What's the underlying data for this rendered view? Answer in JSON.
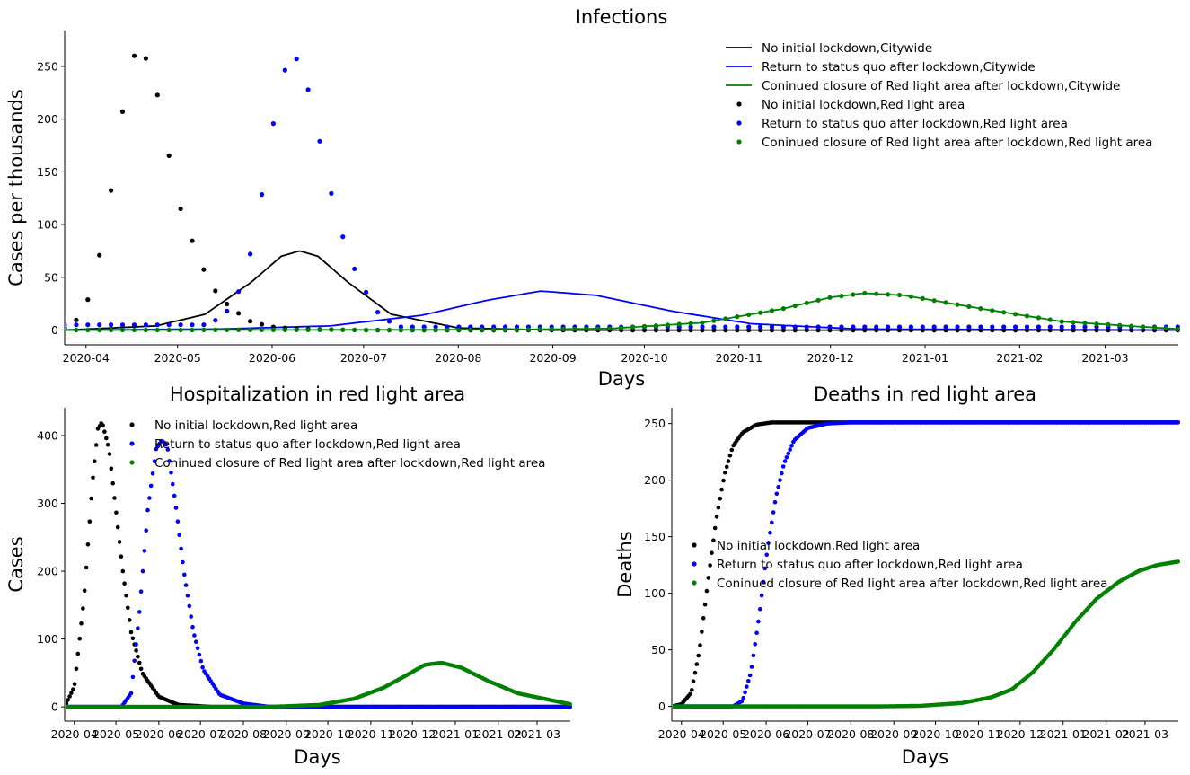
{
  "colors": {
    "black": "#000000",
    "blue": "#0000ff",
    "green": "#008000"
  },
  "chart_data": [
    {
      "type": "line",
      "title": "Infections",
      "xlabel": "Days",
      "ylabel": "Cases per thousands",
      "x_start": "2020-03-25",
      "x_end": "2021-03-25",
      "xlim": [
        "2020-03-25",
        "2021-03-25"
      ],
      "ylim": [
        -14,
        284
      ],
      "xticks": [
        "2020-04",
        "2020-05",
        "2020-06",
        "2020-07",
        "2020-08",
        "2020-09",
        "2020-10",
        "2020-11",
        "2020-12",
        "2021-01",
        "2021-02",
        "2021-03"
      ],
      "yticks": [
        0,
        50,
        100,
        150,
        200,
        250
      ],
      "grid": false,
      "legend_position": "top-right",
      "series": [
        {
          "name": "No initial lockdown,Citywide",
          "style": "line",
          "color": "black",
          "x": [
            "2020-03-25",
            "2020-04-24",
            "2020-05-10",
            "2020-05-25",
            "2020-06-04",
            "2020-06-10",
            "2020-06-16",
            "2020-06-26",
            "2020-07-10",
            "2020-08-01",
            "2020-09-01",
            "2021-03-25"
          ],
          "values": [
            0,
            4,
            15,
            45,
            70,
            75,
            70,
            45,
            15,
            2,
            0,
            0
          ]
        },
        {
          "name": "Return to status quo after lockdown,Citywide",
          "style": "line",
          "color": "blue",
          "x": [
            "2020-03-25",
            "2020-05-15",
            "2020-06-20",
            "2020-07-20",
            "2020-08-10",
            "2020-08-28",
            "2020-09-15",
            "2020-10-10",
            "2020-11-05",
            "2020-12-10",
            "2021-03-25"
          ],
          "values": [
            0,
            1,
            4,
            14,
            28,
            37,
            33,
            18,
            6,
            1,
            0
          ]
        },
        {
          "name": "Coninued closure of Red light area after lockdown,Citywide",
          "style": "line",
          "color": "green",
          "x": [
            "2020-03-25",
            "2020-08-15",
            "2020-09-20",
            "2020-10-20",
            "2020-11-15",
            "2020-12-01",
            "2020-12-12",
            "2020-12-25",
            "2021-01-20",
            "2021-02-15",
            "2021-03-25"
          ],
          "values": [
            0,
            0.3,
            1.5,
            7,
            20,
            31,
            35,
            33,
            20,
            8,
            1
          ]
        },
        {
          "name": "No initial lockdown,Red light area",
          "style": "points",
          "color": "black",
          "x": [
            "2020-03-25",
            "2020-03-29",
            "2020-04-02",
            "2020-04-06",
            "2020-04-11",
            "2020-04-15",
            "2020-04-19",
            "2020-04-24",
            "2020-04-28",
            "2020-05-02",
            "2020-05-07",
            "2020-05-11",
            "2020-05-15",
            "2020-05-20",
            "2020-05-25",
            "2020-06-01",
            "2020-06-10",
            "2020-07-01"
          ],
          "values": [
            2,
            10,
            31,
            78,
            163,
            251,
            271,
            229,
            168,
            115,
            75,
            48,
            30,
            18,
            8,
            3,
            1,
            0
          ]
        },
        {
          "name": "Return to status quo after lockdown,Red light area",
          "style": "points",
          "color": "blue",
          "x": [
            "2020-05-10",
            "2020-05-14",
            "2020-05-18",
            "2020-05-22",
            "2020-05-26",
            "2020-05-30",
            "2020-06-03",
            "2020-06-07",
            "2020-06-11",
            "2020-06-15",
            "2020-06-19",
            "2020-06-23",
            "2020-06-27",
            "2020-07-01",
            "2020-07-06",
            "2020-07-12"
          ],
          "values": [
            5,
            10,
            20,
            42,
            85,
            152,
            225,
            264,
            250,
            201,
            146,
            99,
            64,
            40,
            15,
            3
          ]
        },
        {
          "name": "Coninued closure of Red light area after lockdown,Red light area",
          "style": "points",
          "color": "green",
          "x": [
            "2020-03-25",
            "2020-08-15",
            "2020-09-20",
            "2020-10-20",
            "2020-11-15",
            "2020-12-01",
            "2020-12-12",
            "2020-12-25",
            "2021-01-20",
            "2021-02-15",
            "2021-03-25"
          ],
          "values": [
            0,
            0.3,
            1.5,
            7,
            20,
            31,
            35,
            33,
            20,
            8,
            1
          ]
        }
      ]
    },
    {
      "type": "scatter",
      "title": "Hospitalization in red light area",
      "xlabel": "Days",
      "ylabel": "Cases",
      "x_start": "2020-03-25",
      "x_end": "2021-03-25",
      "xlim": [
        "2020-03-25",
        "2021-03-25"
      ],
      "ylim": [
        -21,
        441
      ],
      "xticks": [
        "2020-04",
        "2020-05",
        "2020-06",
        "2020-07",
        "2020-08",
        "2020-09",
        "2020-10",
        "2020-11",
        "2020-12",
        "2021-01",
        "2021-02",
        "2021-03"
      ],
      "yticks": [
        0,
        100,
        200,
        300,
        400
      ],
      "grid": false,
      "legend_position": "top-center",
      "series": [
        {
          "name": "No initial lockdown,Red light area",
          "color": "black",
          "x": [
            "2020-03-25",
            "2020-04-01",
            "2020-04-08",
            "2020-04-14",
            "2020-04-18",
            "2020-04-21",
            "2020-04-26",
            "2020-05-01",
            "2020-05-06",
            "2020-05-12",
            "2020-05-20",
            "2020-06-01",
            "2020-06-15",
            "2020-07-10"
          ],
          "values": [
            0,
            30,
            160,
            330,
            410,
            420,
            380,
            290,
            200,
            110,
            50,
            15,
            3,
            0
          ]
        },
        {
          "name": "Return to status quo after lockdown,Red light area",
          "color": "blue",
          "x": [
            "2020-03-25",
            "2020-05-05",
            "2020-05-12",
            "2020-05-18",
            "2020-05-24",
            "2020-05-30",
            "2020-06-03",
            "2020-06-07",
            "2020-06-13",
            "2020-06-19",
            "2020-06-26",
            "2020-07-03",
            "2020-07-15",
            "2020-08-01",
            "2020-08-20",
            "2021-03-25"
          ],
          "values": [
            0,
            0,
            20,
            140,
            290,
            380,
            393,
            385,
            300,
            200,
            110,
            55,
            18,
            5,
            0,
            0
          ]
        },
        {
          "name": "Coninued closure of Red light area after lockdown,Red light area",
          "color": "green",
          "x": [
            "2020-03-25",
            "2020-08-20",
            "2020-09-25",
            "2020-10-20",
            "2020-11-10",
            "2020-11-28",
            "2020-12-10",
            "2020-12-22",
            "2021-01-05",
            "2021-01-25",
            "2021-02-15",
            "2021-03-25"
          ],
          "values": [
            0,
            0,
            3,
            12,
            28,
            48,
            62,
            65,
            58,
            38,
            20,
            4
          ]
        }
      ]
    },
    {
      "type": "scatter",
      "title": "Deaths in red light area",
      "xlabel": "Days",
      "ylabel": "Deaths",
      "x_start": "2020-03-25",
      "x_end": "2021-03-25",
      "xlim": [
        "2020-03-25",
        "2021-03-25"
      ],
      "ylim": [
        -13,
        264
      ],
      "xticks": [
        "2020-04",
        "2020-05",
        "2020-06",
        "2020-07",
        "2020-08",
        "2020-09",
        "2020-10",
        "2020-11",
        "2020-12",
        "2021-01",
        "2021-02",
        "2021-03"
      ],
      "yticks": [
        0,
        50,
        100,
        150,
        200,
        250
      ],
      "grid": false,
      "legend_position": "center",
      "series": [
        {
          "name": "No initial lockdown,Red light area",
          "color": "black",
          "x": [
            "2020-03-25",
            "2020-04-01",
            "2020-04-08",
            "2020-04-14",
            "2020-04-20",
            "2020-04-26",
            "2020-05-02",
            "2020-05-08",
            "2020-05-15",
            "2020-05-25",
            "2020-06-05",
            "2020-06-20",
            "2021-03-25"
          ],
          "values": [
            0,
            2,
            12,
            50,
            110,
            165,
            205,
            230,
            242,
            249,
            251,
            251,
            251
          ]
        },
        {
          "name": "Return to status quo after lockdown,Red light area",
          "color": "blue",
          "x": [
            "2020-03-25",
            "2020-05-08",
            "2020-05-15",
            "2020-05-21",
            "2020-05-27",
            "2020-06-02",
            "2020-06-08",
            "2020-06-14",
            "2020-06-21",
            "2020-07-01",
            "2020-07-15",
            "2020-08-01",
            "2021-03-25"
          ],
          "values": [
            0,
            0,
            5,
            30,
            80,
            140,
            185,
            215,
            235,
            246,
            250,
            251,
            251
          ]
        },
        {
          "name": "Coninued closure of Red light area after lockdown,Red light area",
          "color": "green",
          "x": [
            "2020-03-25",
            "2020-08-20",
            "2020-09-20",
            "2020-10-20",
            "2020-11-10",
            "2020-11-25",
            "2020-12-10",
            "2020-12-25",
            "2021-01-10",
            "2021-01-25",
            "2021-02-10",
            "2021-02-25",
            "2021-03-10",
            "2021-03-25"
          ],
          "values": [
            0,
            0,
            0.5,
            3,
            8,
            15,
            30,
            50,
            75,
            95,
            110,
            120,
            125,
            128
          ]
        }
      ]
    }
  ]
}
